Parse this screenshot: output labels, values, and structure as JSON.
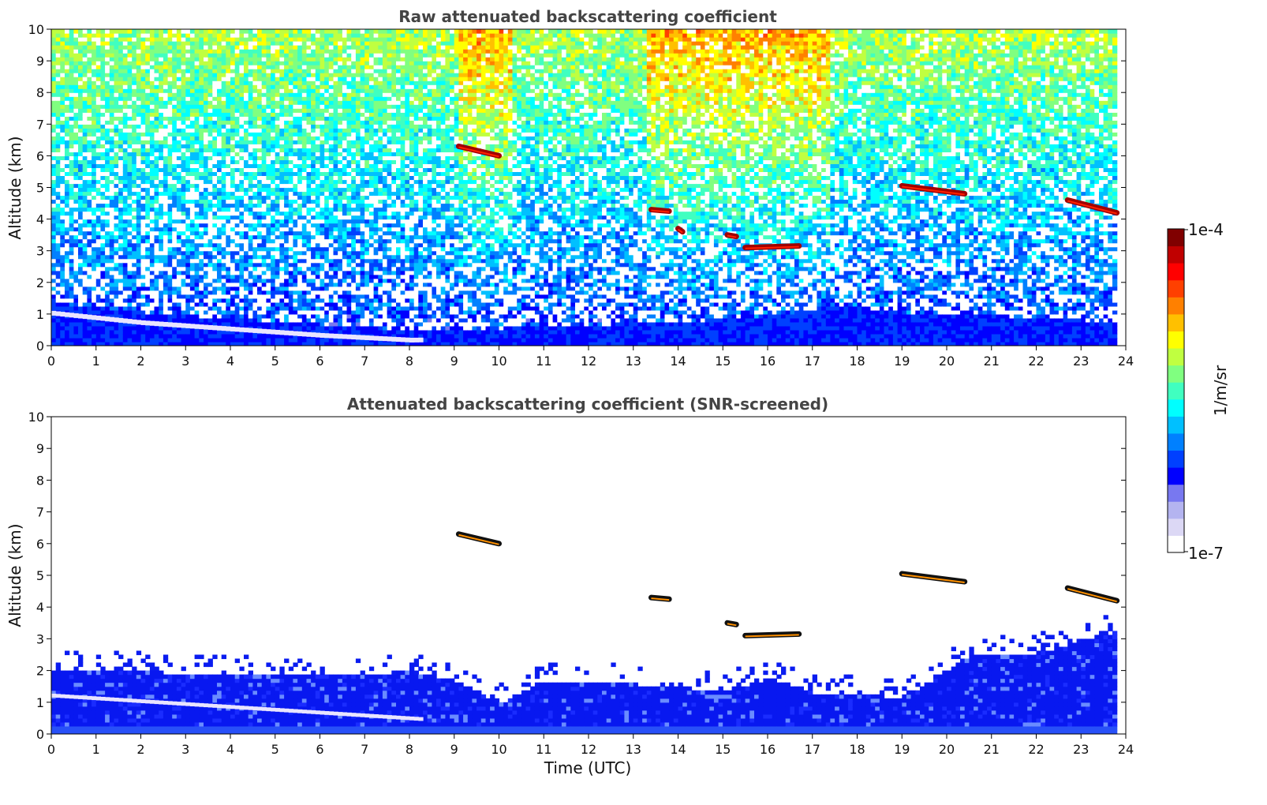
{
  "chart_data": [
    {
      "type": "heatmap",
      "title": "Raw attenuated backscattering coefficient",
      "xlabel": "",
      "ylabel": "Altitude (km)",
      "xlim": [
        0,
        24
      ],
      "ylim": [
        0,
        10
      ],
      "x_ticks": [
        "0",
        "1",
        "2",
        "3",
        "4",
        "5",
        "6",
        "7",
        "8",
        "9",
        "10",
        "11",
        "12",
        "13",
        "14",
        "15",
        "16",
        "17",
        "18",
        "19",
        "20",
        "21",
        "22",
        "23",
        "24"
      ],
      "y_ticks": [
        "0",
        "1",
        "2",
        "3",
        "4",
        "5",
        "6",
        "7",
        "8",
        "9",
        "10"
      ],
      "data_end_hour": 23.8,
      "boundary_layer_top_km": [
        [
          0,
          1.3
        ],
        [
          2,
          1.0
        ],
        [
          4,
          0.8
        ],
        [
          6,
          0.6
        ],
        [
          8,
          0.45
        ],
        [
          10,
          0.5
        ],
        [
          12,
          0.6
        ],
        [
          14,
          0.7
        ],
        [
          16,
          0.9
        ],
        [
          17.5,
          1.2
        ],
        [
          19,
          1.0
        ],
        [
          21,
          0.9
        ],
        [
          23.8,
          0.7
        ]
      ],
      "cloud_layers": [
        {
          "x": [
            9.1,
            10.0
          ],
          "y": [
            6.3,
            6.0
          ]
        },
        {
          "x": [
            13.4,
            13.8
          ],
          "y": [
            4.3,
            4.25
          ]
        },
        {
          "x": [
            14.0,
            14.1
          ],
          "y": [
            3.7,
            3.6
          ]
        },
        {
          "x": [
            15.1,
            15.3
          ],
          "y": [
            3.5,
            3.45
          ]
        },
        {
          "x": [
            15.5,
            16.7
          ],
          "y": [
            3.1,
            3.15
          ]
        },
        {
          "x": [
            19.0,
            20.4
          ],
          "y": [
            5.05,
            4.8
          ]
        },
        {
          "x": [
            22.7,
            23.8
          ],
          "y": [
            4.6,
            4.2
          ]
        }
      ],
      "colorbar": {
        "min_label": "1e-7",
        "max_label": "1e-4",
        "unit": "1/m/sr",
        "scale": "log",
        "colormap": "jet"
      }
    },
    {
      "type": "heatmap",
      "title": "Attenuated backscattering coefficient (SNR-screened)",
      "xlabel": "Time (UTC)",
      "ylabel": "Altitude (km)",
      "xlim": [
        0,
        24
      ],
      "ylim": [
        0,
        10
      ],
      "x_ticks": [
        "0",
        "1",
        "2",
        "3",
        "4",
        "5",
        "6",
        "7",
        "8",
        "9",
        "10",
        "11",
        "12",
        "13",
        "14",
        "15",
        "16",
        "17",
        "18",
        "19",
        "20",
        "21",
        "22",
        "23",
        "24"
      ],
      "y_ticks": [
        "0",
        "1",
        "2",
        "3",
        "4",
        "5",
        "6",
        "7",
        "8",
        "9",
        "10"
      ],
      "data_end_hour": 23.8,
      "screened_layer_top_km": [
        [
          0,
          2.0
        ],
        [
          2,
          1.9
        ],
        [
          4,
          1.8
        ],
        [
          6,
          1.75
        ],
        [
          8,
          1.9
        ],
        [
          9,
          1.6
        ],
        [
          10,
          0.9
        ],
        [
          11,
          1.6
        ],
        [
          13,
          1.5
        ],
        [
          15,
          1.3
        ],
        [
          16,
          1.7
        ],
        [
          17,
          1.2
        ],
        [
          19,
          1.1
        ],
        [
          20.5,
          2.4
        ],
        [
          22,
          2.5
        ],
        [
          23.8,
          3.2
        ]
      ],
      "cloud_layers": [
        {
          "x": [
            9.1,
            10.0
          ],
          "y": [
            6.3,
            6.0
          ]
        },
        {
          "x": [
            13.4,
            13.8
          ],
          "y": [
            4.3,
            4.25
          ]
        },
        {
          "x": [
            15.1,
            15.3
          ],
          "y": [
            3.5,
            3.45
          ]
        },
        {
          "x": [
            15.5,
            16.7
          ],
          "y": [
            3.1,
            3.15
          ]
        },
        {
          "x": [
            19.0,
            20.4
          ],
          "y": [
            5.05,
            4.8
          ]
        },
        {
          "x": [
            22.7,
            23.8
          ],
          "y": [
            4.6,
            4.2
          ]
        }
      ]
    }
  ],
  "colorbar": {
    "min_label": "1e-7",
    "max_label": "1e-4",
    "unit": "1/m/sr",
    "colors": [
      "#ffffff",
      "#dcd8f5",
      "#b4b4f0",
      "#7878f0",
      "#0000ff",
      "#0040ff",
      "#0080ff",
      "#00c0ff",
      "#00ffff",
      "#40ffc0",
      "#80ff80",
      "#c0ff40",
      "#ffff00",
      "#ffc000",
      "#ff8000",
      "#ff4000",
      "#ff0000",
      "#c00000",
      "#800000"
    ]
  }
}
